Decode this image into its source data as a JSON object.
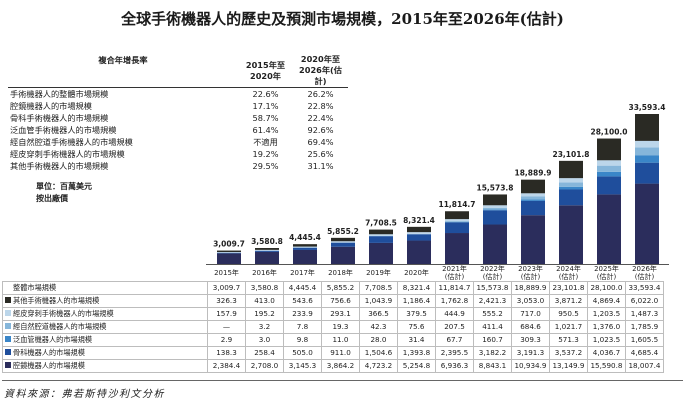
{
  "title": "全球手術機器人的歷史及預測市場規模，2015年至2026年(估計)",
  "cagr_table": {
    "header_label": "複合年增長率",
    "col1": [
      "2015年至",
      "2020年"
    ],
    "col2": [
      "2020年至",
      "2026年(估計)"
    ],
    "rows": [
      {
        "label": "手術機器人的整體市場規模",
        "v1": "22.6%",
        "v2": "26.2%"
      },
      {
        "label": "腔鏡機器人的市場規模",
        "v1": "17.1%",
        "v2": "22.8%"
      },
      {
        "label": "骨科手術機器人的市場規模",
        "v1": "58.7%",
        "v2": "22.4%"
      },
      {
        "label": "泛血管手術機器人的市場規模",
        "v1": "61.4%",
        "v2": "92.6%"
      },
      {
        "label": "經自然腔道手術機器人的市場規模",
        "v1": "不適用",
        "v2": "69.4%"
      },
      {
        "label": "經皮穿刺手術機器人的市場規模",
        "v1": "19.2%",
        "v2": "25.6%"
      },
      {
        "label": "其他手術機器人的市場規模",
        "v1": "29.5%",
        "v2": "31.1%"
      }
    ]
  },
  "units": [
    "單位：百萬美元",
    "按出廠價"
  ],
  "source": "資料來源：弗若斯特沙利文分析",
  "chart_data": {
    "type": "bar",
    "stacked": true,
    "categories": [
      "2015年",
      "2016年",
      "2017年",
      "2018年",
      "2019年",
      "2020年",
      "2021年(估計)",
      "2022年(估計)",
      "2023年(估計)",
      "2024年(估計)",
      "2025年(估計)",
      "2026年(估計)"
    ],
    "series": [
      {
        "name": "腔鏡機器人的市場規模",
        "color": "#2b2d5c",
        "values": [
          2384.4,
          2708.0,
          3145.3,
          3864.2,
          4723.2,
          5254.8,
          6936.3,
          8843.1,
          10934.9,
          13149.9,
          15590.8,
          18007.4
        ]
      },
      {
        "name": "骨科機器人的市場規模",
        "color": "#1f4e9c",
        "values": [
          138.3,
          258.4,
          505.0,
          911.0,
          1504.6,
          1393.8,
          2395.5,
          3182.2,
          3191.3,
          3537.2,
          4036.7,
          4685.4
        ]
      },
      {
        "name": "泛血管機器人的市場規模",
        "color": "#3a86c8",
        "values": [
          2.9,
          3.0,
          9.8,
          11.0,
          28.0,
          31.4,
          67.7,
          160.7,
          309.3,
          571.3,
          1023.5,
          1605.5
        ]
      },
      {
        "name": "經自然腔道機器人的市場規模",
        "color": "#86b6da",
        "values": [
          "—",
          3.2,
          7.8,
          19.3,
          42.3,
          75.6,
          207.5,
          411.4,
          684.6,
          1021.7,
          1376.0,
          1785.9
        ]
      },
      {
        "name": "經皮穿刺手術機器人的市場規模",
        "color": "#bcd6ea",
        "values": [
          157.9,
          195.2,
          233.9,
          293.1,
          366.5,
          379.5,
          444.9,
          555.2,
          717.0,
          950.5,
          1203.5,
          1487.3
        ]
      },
      {
        "name": "其他手術機器人的市場規模",
        "color": "#2a2a24",
        "values": [
          326.3,
          413.0,
          543.6,
          756.6,
          1043.9,
          1186.4,
          1762.8,
          2421.3,
          3053.0,
          3871.2,
          4869.4,
          6022.0
        ]
      }
    ],
    "totals_label": "整體市場規模",
    "totals": [
      3009.7,
      3580.8,
      4445.4,
      5855.2,
      7708.5,
      8321.4,
      11814.7,
      15573.8,
      18889.9,
      23101.8,
      28100.0,
      33593.4
    ],
    "total_labels": [
      "3,009.7",
      "3,580.8",
      "4,445.4",
      "5,855.2",
      "7,708.5",
      "8,321.4",
      "11,814.7",
      "15,573.8",
      "18,889.9",
      "23,101.8",
      "28,100.0",
      "33,593.4"
    ]
  }
}
